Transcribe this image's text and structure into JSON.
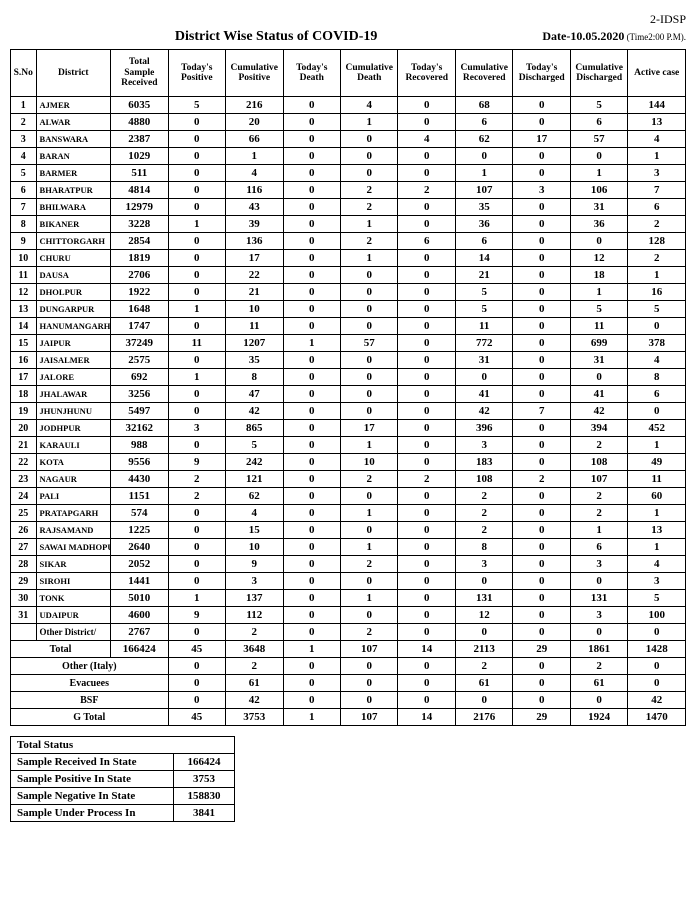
{
  "page_marker": "2-IDSP",
  "title": "District Wise Status of  COVID-19",
  "date_prefix": "Date-",
  "date_value": "10.05.2020",
  "date_suffix": " (Time2:00 P.M).",
  "columns": [
    "S.No",
    "District",
    "Total Sample Received",
    "Today's Positive",
    "Cumulative Positive",
    "Today's Death",
    "Cumulative Death",
    "Today's Recovered",
    "Cumulative Recovered",
    "Today's Discharged",
    "Cumulative Discharged",
    "Active case"
  ],
  "rows": [
    {
      "n": "1",
      "d": "AJMER",
      "v": [
        "6035",
        "5",
        "216",
        "0",
        "4",
        "0",
        "68",
        "0",
        "5",
        "144"
      ]
    },
    {
      "n": "2",
      "d": "ALWAR",
      "v": [
        "4880",
        "0",
        "20",
        "0",
        "1",
        "0",
        "6",
        "0",
        "6",
        "13"
      ]
    },
    {
      "n": "3",
      "d": "BANSWARA",
      "v": [
        "2387",
        "0",
        "66",
        "0",
        "0",
        "4",
        "62",
        "17",
        "57",
        "4"
      ]
    },
    {
      "n": "4",
      "d": "BARAN",
      "v": [
        "1029",
        "0",
        "1",
        "0",
        "0",
        "0",
        "0",
        "0",
        "0",
        "1"
      ]
    },
    {
      "n": "5",
      "d": "BARMER",
      "v": [
        "511",
        "0",
        "4",
        "0",
        "0",
        "0",
        "1",
        "0",
        "1",
        "3"
      ]
    },
    {
      "n": "6",
      "d": "BHARATPUR",
      "v": [
        "4814",
        "0",
        "116",
        "0",
        "2",
        "2",
        "107",
        "3",
        "106",
        "7"
      ]
    },
    {
      "n": "7",
      "d": "BHILWARA",
      "v": [
        "12979",
        "0",
        "43",
        "0",
        "2",
        "0",
        "35",
        "0",
        "31",
        "6"
      ]
    },
    {
      "n": "8",
      "d": "BIKANER",
      "v": [
        "3228",
        "1",
        "39",
        "0",
        "1",
        "0",
        "36",
        "0",
        "36",
        "2"
      ]
    },
    {
      "n": "9",
      "d": "CHITTORGARH",
      "v": [
        "2854",
        "0",
        "136",
        "0",
        "2",
        "6",
        "6",
        "0",
        "0",
        "128"
      ]
    },
    {
      "n": "10",
      "d": "CHURU",
      "v": [
        "1819",
        "0",
        "17",
        "0",
        "1",
        "0",
        "14",
        "0",
        "12",
        "2"
      ]
    },
    {
      "n": "11",
      "d": "DAUSA",
      "v": [
        "2706",
        "0",
        "22",
        "0",
        "0",
        "0",
        "21",
        "0",
        "18",
        "1"
      ]
    },
    {
      "n": "12",
      "d": "DHOLPUR",
      "v": [
        "1922",
        "0",
        "21",
        "0",
        "0",
        "0",
        "5",
        "0",
        "1",
        "16"
      ]
    },
    {
      "n": "13",
      "d": "DUNGARPUR",
      "v": [
        "1648",
        "1",
        "10",
        "0",
        "0",
        "0",
        "5",
        "0",
        "5",
        "5"
      ]
    },
    {
      "n": "14",
      "d": "HANUMANGARH",
      "v": [
        "1747",
        "0",
        "11",
        "0",
        "0",
        "0",
        "11",
        "0",
        "11",
        "0"
      ]
    },
    {
      "n": "15",
      "d": "JAIPUR",
      "v": [
        "37249",
        "11",
        "1207",
        "1",
        "57",
        "0",
        "772",
        "0",
        "699",
        "378"
      ]
    },
    {
      "n": "16",
      "d": "JAISALMER",
      "v": [
        "2575",
        "0",
        "35",
        "0",
        "0",
        "0",
        "31",
        "0",
        "31",
        "4"
      ]
    },
    {
      "n": "17",
      "d": "JALORE",
      "v": [
        "692",
        "1",
        "8",
        "0",
        "0",
        "0",
        "0",
        "0",
        "0",
        "8"
      ]
    },
    {
      "n": "18",
      "d": "JHALAWAR",
      "v": [
        "3256",
        "0",
        "47",
        "0",
        "0",
        "0",
        "41",
        "0",
        "41",
        "6"
      ]
    },
    {
      "n": "19",
      "d": "JHUNJHUNU",
      "v": [
        "5497",
        "0",
        "42",
        "0",
        "0",
        "0",
        "42",
        "7",
        "42",
        "0"
      ]
    },
    {
      "n": "20",
      "d": "JODHPUR",
      "v": [
        "32162",
        "3",
        "865",
        "0",
        "17",
        "0",
        "396",
        "0",
        "394",
        "452"
      ]
    },
    {
      "n": "21",
      "d": "KARAULI",
      "v": [
        "988",
        "0",
        "5",
        "0",
        "1",
        "0",
        "3",
        "0",
        "2",
        "1"
      ]
    },
    {
      "n": "22",
      "d": "KOTA",
      "v": [
        "9556",
        "9",
        "242",
        "0",
        "10",
        "0",
        "183",
        "0",
        "108",
        "49"
      ]
    },
    {
      "n": "23",
      "d": "NAGAUR",
      "v": [
        "4430",
        "2",
        "121",
        "0",
        "2",
        "2",
        "108",
        "2",
        "107",
        "11"
      ]
    },
    {
      "n": "24",
      "d": "PALI",
      "v": [
        "1151",
        "2",
        "62",
        "0",
        "0",
        "0",
        "2",
        "0",
        "2",
        "60"
      ]
    },
    {
      "n": "25",
      "d": "PRATAPGARH",
      "v": [
        "574",
        "0",
        "4",
        "0",
        "1",
        "0",
        "2",
        "0",
        "2",
        "1"
      ]
    },
    {
      "n": "26",
      "d": "RAJSAMAND",
      "v": [
        "1225",
        "0",
        "15",
        "0",
        "0",
        "0",
        "2",
        "0",
        "1",
        "13"
      ]
    },
    {
      "n": "27",
      "d": "SAWAI MADHOPUR",
      "v": [
        "2640",
        "0",
        "10",
        "0",
        "1",
        "0",
        "8",
        "0",
        "6",
        "1"
      ]
    },
    {
      "n": "28",
      "d": "SIKAR",
      "v": [
        "2052",
        "0",
        "9",
        "0",
        "2",
        "0",
        "3",
        "0",
        "3",
        "4"
      ]
    },
    {
      "n": "29",
      "d": "SIROHI",
      "v": [
        "1441",
        "0",
        "3",
        "0",
        "0",
        "0",
        "0",
        "0",
        "0",
        "3"
      ]
    },
    {
      "n": "30",
      "d": "TONK",
      "v": [
        "5010",
        "1",
        "137",
        "0",
        "1",
        "0",
        "131",
        "0",
        "131",
        "5"
      ]
    },
    {
      "n": "31",
      "d": "UDAIPUR",
      "v": [
        "4600",
        "9",
        "112",
        "0",
        "0",
        "0",
        "12",
        "0",
        "3",
        "100"
      ]
    }
  ],
  "other_district": {
    "label": "Other District/",
    "v": [
      "2767",
      "0",
      "2",
      "0",
      "2",
      "0",
      "0",
      "0",
      "0",
      "0"
    ]
  },
  "total": {
    "label": "Total",
    "v": [
      "166424",
      "45",
      "3648",
      "1",
      "107",
      "14",
      "2113",
      "29",
      "1861",
      "1428"
    ]
  },
  "extras": [
    {
      "label": "Other (Italy)",
      "v": [
        "0",
        "2",
        "0",
        "0",
        "0",
        "2",
        "0",
        "2",
        "0"
      ]
    },
    {
      "label": "Evacuees",
      "v": [
        "0",
        "61",
        "0",
        "0",
        "0",
        "61",
        "0",
        "61",
        "0"
      ]
    },
    {
      "label": "BSF",
      "v": [
        "0",
        "42",
        "0",
        "0",
        "0",
        "0",
        "0",
        "0",
        "42"
      ]
    },
    {
      "label": "G Total",
      "v": [
        "45",
        "3753",
        "1",
        "107",
        "14",
        "2176",
        "29",
        "1924",
        "1470"
      ]
    }
  ],
  "status": {
    "title": "Total Status",
    "rows": [
      {
        "l": "Sample Received In State",
        "v": "166424"
      },
      {
        "l": "Sample Positive In State",
        "v": "3753"
      },
      {
        "l": "Sample Negative In State",
        "v": "158830"
      },
      {
        "l": "Sample Under Process In",
        "v": "3841"
      }
    ]
  }
}
